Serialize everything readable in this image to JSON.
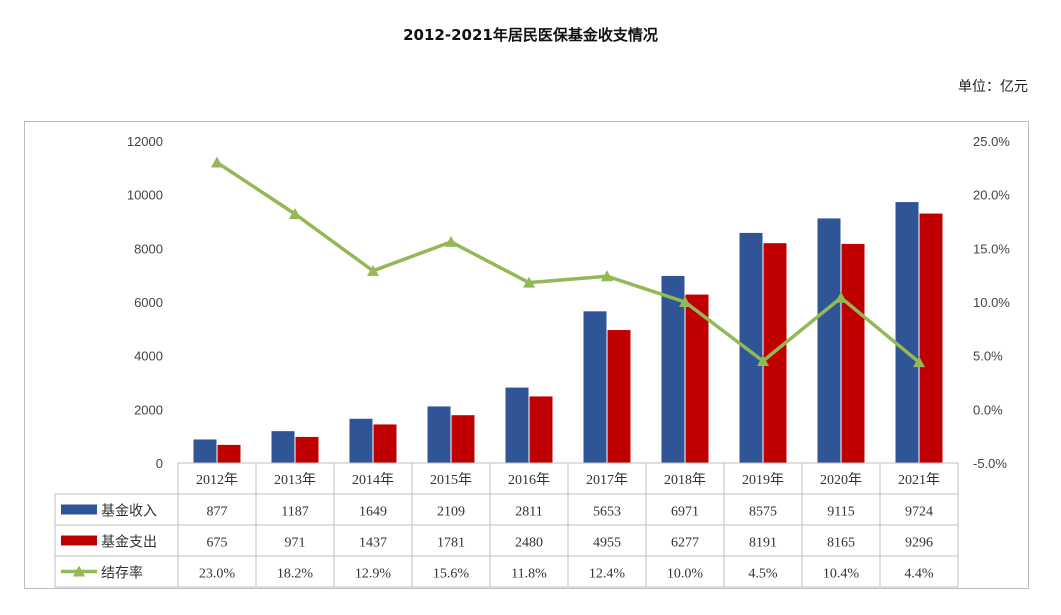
{
  "title": "2012-2021年居民医保基金收支情况",
  "unit_label": "单位：亿元",
  "colors": {
    "income": "#2F5597",
    "expense": "#C00000",
    "rate": "#92B955",
    "grid": "#bfbfbf"
  },
  "chart_data": {
    "type": "bar",
    "title": "2012-2021年居民医保基金收支情况",
    "categories": [
      "2012年",
      "2013年",
      "2014年",
      "2015年",
      "2016年",
      "2017年",
      "2018年",
      "2019年",
      "2020年",
      "2021年"
    ],
    "series": [
      {
        "name": "基金收入",
        "type": "bar",
        "axis": "left",
        "values": [
          877,
          1187,
          1649,
          2109,
          2811,
          5653,
          6971,
          8575,
          9115,
          9724
        ]
      },
      {
        "name": "基金支出",
        "type": "bar",
        "axis": "left",
        "values": [
          675,
          971,
          1437,
          1781,
          2480,
          4955,
          6277,
          8191,
          8165,
          9296
        ]
      },
      {
        "name": "结存率",
        "type": "line",
        "axis": "right",
        "marker": "triangle",
        "values": [
          23.0,
          18.2,
          12.9,
          15.6,
          11.8,
          12.4,
          10.0,
          4.5,
          10.4,
          4.4
        ]
      }
    ],
    "left_axis": {
      "ylim": [
        0,
        12000
      ],
      "ticks": [
        "0",
        "2000",
        "4000",
        "6000",
        "8000",
        "10000",
        "12000"
      ]
    },
    "right_axis": {
      "ylim": [
        -5,
        25
      ],
      "ticks": [
        "-5.0%",
        "0.0%",
        "5.0%",
        "10.0%",
        "15.0%",
        "20.0%",
        "25.0%"
      ]
    },
    "data_table": {
      "rows": [
        {
          "label": "基金收入",
          "cells": [
            "877",
            "1187",
            "1649",
            "2109",
            "2811",
            "5653",
            "6971",
            "8575",
            "9115",
            "9724"
          ]
        },
        {
          "label": "基金支出",
          "cells": [
            "675",
            "971",
            "1437",
            "1781",
            "2480",
            "4955",
            "6277",
            "8191",
            "8165",
            "9296"
          ]
        },
        {
          "label": "结存率",
          "cells": [
            "23.0%",
            "18.2%",
            "12.9%",
            "15.6%",
            "11.8%",
            "12.4%",
            "10.0%",
            "4.5%",
            "10.4%",
            "4.4%"
          ]
        }
      ]
    },
    "grid": false,
    "legend": "data-table"
  }
}
